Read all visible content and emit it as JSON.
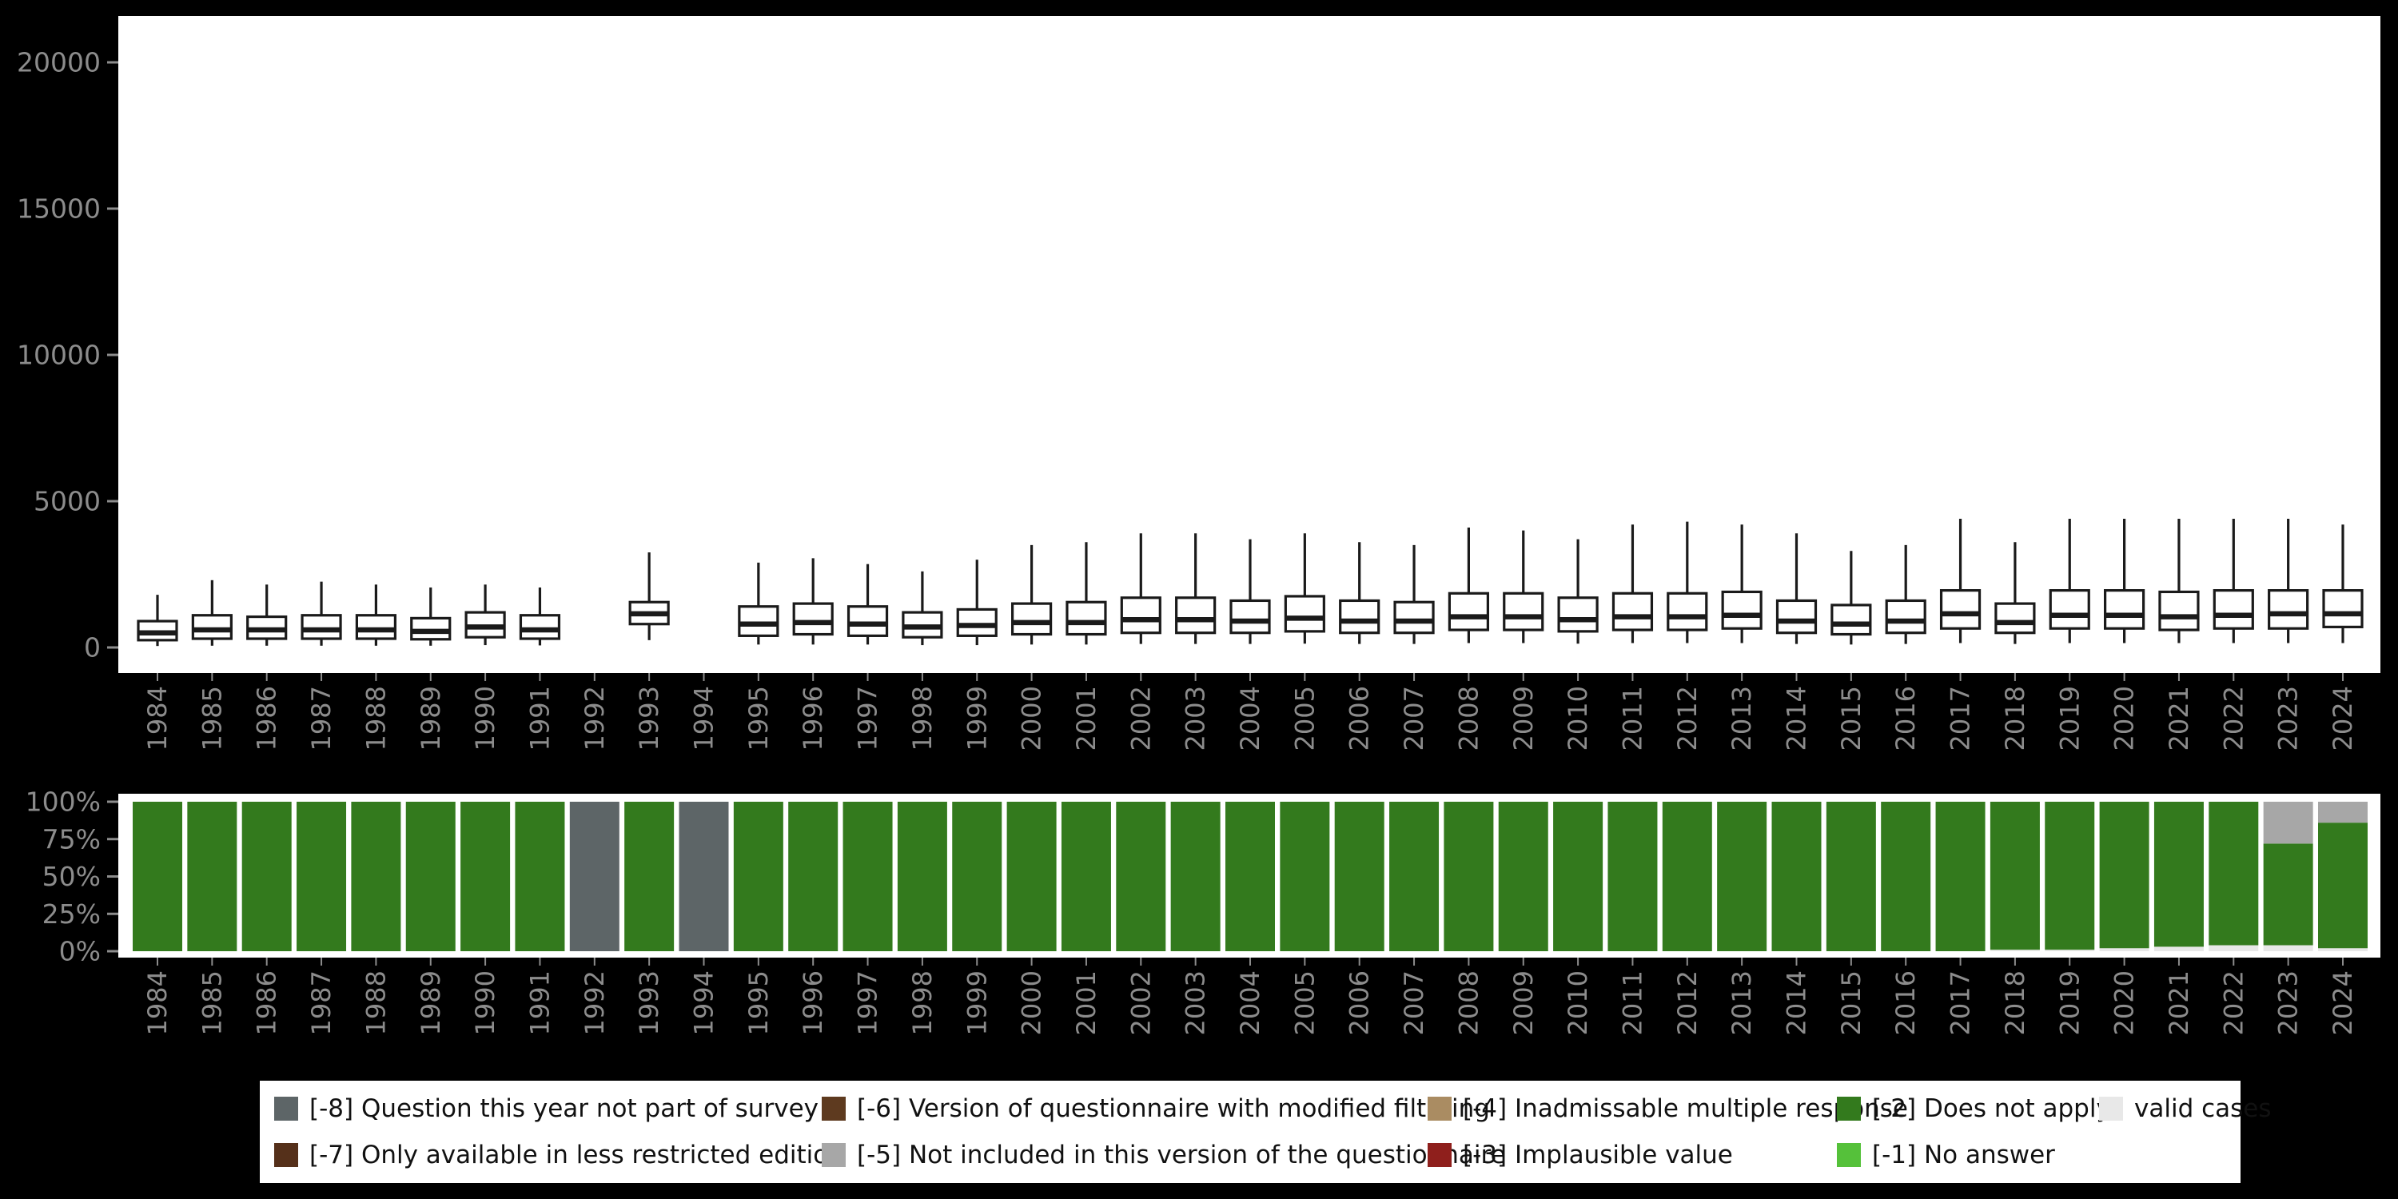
{
  "figure": {
    "background": "#000000",
    "panel_background": "#ffffff",
    "axis_label_color": "#8c8c8c",
    "box_stroke_color": "#1a1a1a"
  },
  "chart_data": [
    {
      "type": "boxplot",
      "title": "",
      "xlabel": "",
      "ylabel": "",
      "ylim": [
        0,
        21000
      ],
      "yticks": [
        0,
        5000,
        10000,
        15000,
        20000
      ],
      "grid": false,
      "categories": [
        "1984",
        "1985",
        "1986",
        "1987",
        "1988",
        "1989",
        "1990",
        "1991",
        "1992",
        "1993",
        "1994",
        "1995",
        "1996",
        "1997",
        "1998",
        "1999",
        "2000",
        "2001",
        "2002",
        "2003",
        "2004",
        "2005",
        "2006",
        "2007",
        "2008",
        "2009",
        "2010",
        "2011",
        "2012",
        "2013",
        "2014",
        "2015",
        "2016",
        "2017",
        "2018",
        "2019",
        "2020",
        "2021",
        "2022",
        "2023",
        "2024"
      ],
      "series_note": "values are [whisker_low, q1, median, q3, whisker_high]; null = no data that year",
      "series": [
        [
          50,
          250,
          500,
          900,
          1800
        ],
        [
          60,
          300,
          600,
          1100,
          2300
        ],
        [
          60,
          300,
          600,
          1050,
          2150
        ],
        [
          60,
          300,
          600,
          1100,
          2250
        ],
        [
          60,
          300,
          600,
          1100,
          2150
        ],
        [
          60,
          280,
          550,
          1000,
          2050
        ],
        [
          80,
          350,
          700,
          1200,
          2150
        ],
        [
          70,
          300,
          600,
          1100,
          2050
        ],
        null,
        [
          250,
          800,
          1150,
          1550,
          3250
        ],
        null,
        [
          100,
          400,
          800,
          1400,
          2900
        ],
        [
          100,
          450,
          850,
          1500,
          3050
        ],
        [
          100,
          400,
          800,
          1400,
          2850
        ],
        [
          80,
          350,
          700,
          1200,
          2600
        ],
        [
          80,
          400,
          750,
          1300,
          3000
        ],
        [
          100,
          450,
          850,
          1500,
          3500
        ],
        [
          100,
          450,
          850,
          1550,
          3600
        ],
        [
          120,
          500,
          950,
          1700,
          3900
        ],
        [
          120,
          500,
          950,
          1700,
          3900
        ],
        [
          120,
          500,
          900,
          1600,
          3700
        ],
        [
          130,
          550,
          1000,
          1750,
          3900
        ],
        [
          120,
          500,
          900,
          1600,
          3600
        ],
        [
          120,
          500,
          900,
          1550,
          3500
        ],
        [
          150,
          600,
          1050,
          1850,
          4100
        ],
        [
          150,
          600,
          1050,
          1850,
          4000
        ],
        [
          130,
          550,
          950,
          1700,
          3700
        ],
        [
          150,
          600,
          1050,
          1850,
          4200
        ],
        [
          150,
          600,
          1050,
          1850,
          4300
        ],
        [
          150,
          650,
          1100,
          1900,
          4200
        ],
        [
          120,
          500,
          900,
          1600,
          3900
        ],
        [
          100,
          450,
          800,
          1450,
          3300
        ],
        [
          120,
          500,
          900,
          1600,
          3500
        ],
        [
          150,
          650,
          1150,
          1950,
          4400
        ],
        [
          120,
          500,
          850,
          1500,
          3600
        ],
        [
          150,
          650,
          1100,
          1950,
          4400
        ],
        [
          150,
          650,
          1100,
          1950,
          4400
        ],
        [
          150,
          600,
          1050,
          1900,
          4400
        ],
        [
          150,
          650,
          1100,
          1950,
          4400
        ],
        [
          150,
          650,
          1150,
          1950,
          4400
        ],
        [
          150,
          700,
          1150,
          1950,
          4200
        ]
      ]
    },
    {
      "type": "bar",
      "stacked": true,
      "unit": "percent",
      "title": "",
      "ylim": [
        0,
        100
      ],
      "ytick_labels": [
        "100%",
        "75%",
        "50%",
        "25%",
        "0%"
      ],
      "yticks": [
        100,
        75,
        50,
        25,
        0
      ],
      "categories": [
        "1984",
        "1985",
        "1986",
        "1987",
        "1988",
        "1989",
        "1990",
        "1991",
        "1992",
        "1993",
        "1994",
        "1995",
        "1996",
        "1997",
        "1998",
        "1999",
        "2000",
        "2001",
        "2002",
        "2003",
        "2004",
        "2005",
        "2006",
        "2007",
        "2008",
        "2009",
        "2010",
        "2011",
        "2012",
        "2013",
        "2014",
        "2015",
        "2016",
        "2017",
        "2018",
        "2019",
        "2020",
        "2021",
        "2022",
        "2023",
        "2024"
      ],
      "segments_note": "per-year stacked segments bottom-to-top as [code, percent]",
      "bars": [
        [
          [
            "-2",
            100
          ]
        ],
        [
          [
            "-2",
            100
          ]
        ],
        [
          [
            "-2",
            100
          ]
        ],
        [
          [
            "-2",
            100
          ]
        ],
        [
          [
            "-2",
            100
          ]
        ],
        [
          [
            "-2",
            100
          ]
        ],
        [
          [
            "-2",
            100
          ]
        ],
        [
          [
            "-2",
            100
          ]
        ],
        [
          [
            "-8",
            100
          ]
        ],
        [
          [
            "-2",
            100
          ]
        ],
        [
          [
            "-8",
            100
          ]
        ],
        [
          [
            "-2",
            100
          ]
        ],
        [
          [
            "-2",
            100
          ]
        ],
        [
          [
            "-2",
            100
          ]
        ],
        [
          [
            "-2",
            100
          ]
        ],
        [
          [
            "-2",
            100
          ]
        ],
        [
          [
            "-2",
            100
          ]
        ],
        [
          [
            "-2",
            100
          ]
        ],
        [
          [
            "-2",
            100
          ]
        ],
        [
          [
            "-2",
            100
          ]
        ],
        [
          [
            "-2",
            100
          ]
        ],
        [
          [
            "-2",
            100
          ]
        ],
        [
          [
            "-2",
            100
          ]
        ],
        [
          [
            "-2",
            100
          ]
        ],
        [
          [
            "-2",
            100
          ]
        ],
        [
          [
            "-2",
            100
          ]
        ],
        [
          [
            "-2",
            100
          ]
        ],
        [
          [
            "-2",
            100
          ]
        ],
        [
          [
            "-2",
            100
          ]
        ],
        [
          [
            "-2",
            100
          ]
        ],
        [
          [
            "-2",
            100
          ]
        ],
        [
          [
            "-2",
            100
          ]
        ],
        [
          [
            "-2",
            100
          ]
        ],
        [
          [
            "-2",
            100
          ]
        ],
        [
          [
            "valid",
            1
          ],
          [
            "-2",
            99
          ]
        ],
        [
          [
            "valid",
            1
          ],
          [
            "-2",
            99
          ]
        ],
        [
          [
            "valid",
            2
          ],
          [
            "-2",
            98
          ]
        ],
        [
          [
            "valid",
            3
          ],
          [
            "-2",
            97
          ]
        ],
        [
          [
            "valid",
            4
          ],
          [
            "-2",
            96
          ]
        ],
        [
          [
            "valid",
            4
          ],
          [
            "-2",
            68
          ],
          [
            "-5",
            28
          ]
        ],
        [
          [
            "valid",
            2
          ],
          [
            "-2",
            84
          ],
          [
            "-5",
            14
          ]
        ]
      ]
    }
  ],
  "legend": {
    "position": "bottom",
    "items": [
      {
        "id": "-8",
        "label": "[-8] Question this year not part of survey",
        "color": "#5d6567",
        "row": 1,
        "col": 1
      },
      {
        "id": "-7",
        "label": "[-7] Only available in less restricted edition",
        "color": "#55301a",
        "row": 2,
        "col": 1
      },
      {
        "id": "-6",
        "label": "[-6] Version of questionnaire with modified filtering",
        "color": "#5e3a1f",
        "row": 1,
        "col": 2
      },
      {
        "id": "-5",
        "label": "[-5] Not included in this version of the questionnaire",
        "color": "#a7a7a7",
        "row": 2,
        "col": 2
      },
      {
        "id": "-4",
        "label": "[-4] Inadmissable multiple response",
        "color": "#aa8c62",
        "row": 1,
        "col": 3
      },
      {
        "id": "-3",
        "label": "[-3] Implausible value",
        "color": "#8f1f1c",
        "row": 2,
        "col": 3
      },
      {
        "id": "-2",
        "label": "[-2] Does not apply",
        "color": "#337a1d",
        "row": 1,
        "col": 4
      },
      {
        "id": "-1",
        "label": "[-1] No answer",
        "color": "#55c13a",
        "row": 2,
        "col": 4
      },
      {
        "id": "valid",
        "label": "valid cases",
        "color": "#e8e8e8",
        "row": 1,
        "col": 5
      }
    ]
  }
}
